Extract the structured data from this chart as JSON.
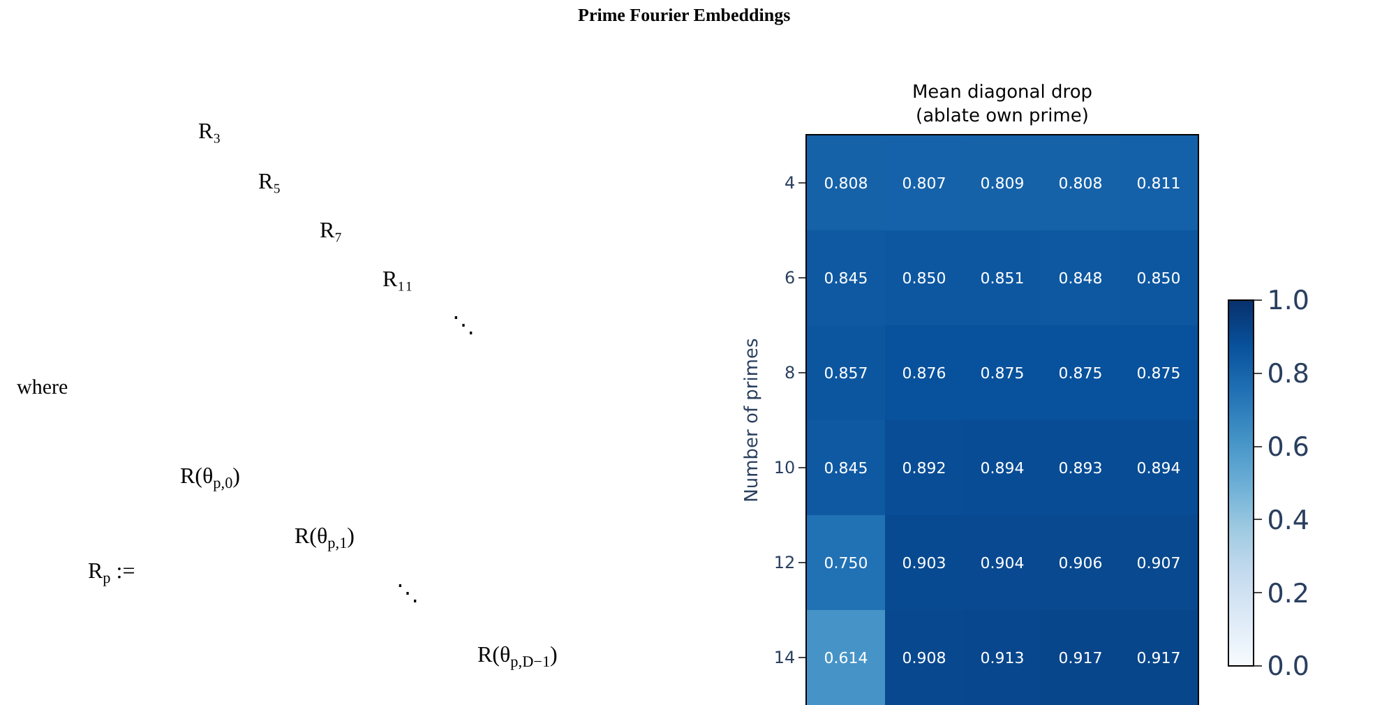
{
  "chart_data": {
    "type": "heatmap",
    "title": "Mean diagonal drop\n(ablate own prime)",
    "ylabel": "Number of primes",
    "categories": [
      null,
      null,
      null,
      null,
      null
    ],
    "y_categories": [
      "4",
      "6",
      "8",
      "10",
      "12",
      "14"
    ],
    "cells": [
      [
        0.808,
        0.807,
        0.809,
        0.808,
        0.811
      ],
      [
        0.845,
        0.85,
        0.851,
        0.848,
        0.85
      ],
      [
        0.857,
        0.876,
        0.875,
        0.875,
        0.875
      ],
      [
        0.845,
        0.892,
        0.894,
        0.893,
        0.894
      ],
      [
        0.75,
        0.903,
        0.904,
        0.906,
        0.907
      ],
      [
        0.614,
        0.908,
        0.913,
        0.917,
        0.917
      ]
    ],
    "cell_labels": [
      [
        "0.808",
        "0.807",
        "0.809",
        "0.808",
        "0.811"
      ],
      [
        "0.845",
        "0.850",
        "0.851",
        "0.848",
        "0.850"
      ],
      [
        "0.857",
        "0.876",
        "0.875",
        "0.875",
        "0.875"
      ],
      [
        "0.845",
        "0.892",
        "0.894",
        "0.893",
        "0.894"
      ],
      [
        "0.750",
        "0.903",
        "0.904",
        "0.906",
        "0.907"
      ],
      [
        "0.614",
        "0.908",
        "0.913",
        "0.917",
        "0.917"
      ]
    ],
    "clim": [
      0,
      1
    ],
    "cticks": [
      {
        "value": 0,
        "label": "0.0"
      },
      {
        "value": 0.2,
        "label": "0.2"
      },
      {
        "value": 0.4,
        "label": "0.4"
      },
      {
        "value": 0.6,
        "label": "0.6"
      },
      {
        "value": 0.8,
        "label": "0.8"
      },
      {
        "value": 1,
        "label": "1.0"
      }
    ],
    "annotations": [
      "Prime Fourier Embeddings",
      "R₃",
      "R₅",
      "R₇",
      "R₁₁",
      "⋱",
      "where",
      "R$_{p}$ :=",
      "R(θ$_{p,0}$)",
      "R(θ$_{p,1}$)",
      "⋱",
      "R(θ$_{p,D−1}$)"
    ]
  }
}
